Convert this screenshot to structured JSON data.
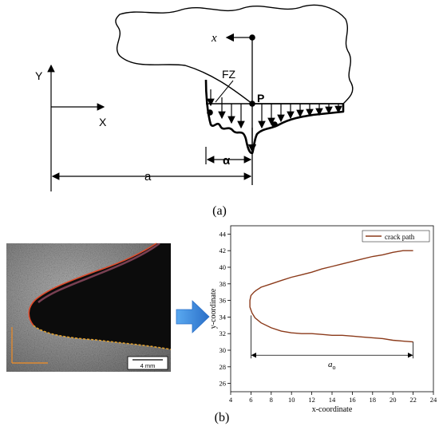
{
  "panel_a": {
    "caption": "(a)",
    "labels": {
      "Y": "Y",
      "X": "X",
      "x": "x",
      "FZ": "FZ",
      "P": "P",
      "alpha": "α",
      "a": "a"
    }
  },
  "panel_b": {
    "caption": "(b)",
    "micrograph": {
      "scale_bar_label": "4 mm"
    },
    "arrow_color": "#2f7fd6",
    "chart_data": {
      "type": "line",
      "xlabel": "x-coordinate",
      "ylabel": "y-coordinate",
      "xlim": [
        4,
        24
      ],
      "ylim": [
        25,
        45
      ],
      "xticks": [
        4,
        6,
        8,
        10,
        12,
        14,
        16,
        18,
        20,
        22,
        24
      ],
      "yticks": [
        26,
        28,
        30,
        32,
        34,
        36,
        38,
        40,
        42,
        44
      ],
      "grid": false,
      "legend_position": "top-right",
      "series": [
        {
          "name": "crack path",
          "color": "#8b3a1a",
          "x": [
            22.0,
            21.0,
            20.0,
            19.0,
            18.0,
            17.0,
            16.0,
            15.0,
            14.0,
            13.0,
            12.0,
            11.0,
            10.0,
            9.0,
            8.0,
            7.0,
            6.5,
            6.3,
            6.0,
            5.9,
            5.9,
            6.1,
            6.4,
            7.0,
            8.0,
            9.0,
            10.0,
            11.0,
            12.0,
            13.0,
            14.0,
            15.0,
            16.0,
            17.0,
            18.0,
            19.0,
            20.0,
            21.0,
            22.0
          ],
          "y": [
            42.0,
            42.0,
            41.8,
            41.5,
            41.3,
            41.0,
            40.7,
            40.4,
            40.1,
            39.8,
            39.4,
            39.1,
            38.8,
            38.4,
            38.0,
            37.6,
            37.2,
            37.0,
            36.6,
            36.0,
            35.2,
            34.5,
            33.9,
            33.3,
            32.7,
            32.3,
            32.1,
            32.0,
            32.0,
            31.9,
            31.8,
            31.8,
            31.7,
            31.6,
            31.5,
            31.4,
            31.2,
            31.1,
            31.0
          ]
        }
      ],
      "annotation": {
        "label": "a",
        "label_subscript": "o",
        "from_x": 6,
        "to_x": 22,
        "at_y": 29.4
      }
    }
  }
}
